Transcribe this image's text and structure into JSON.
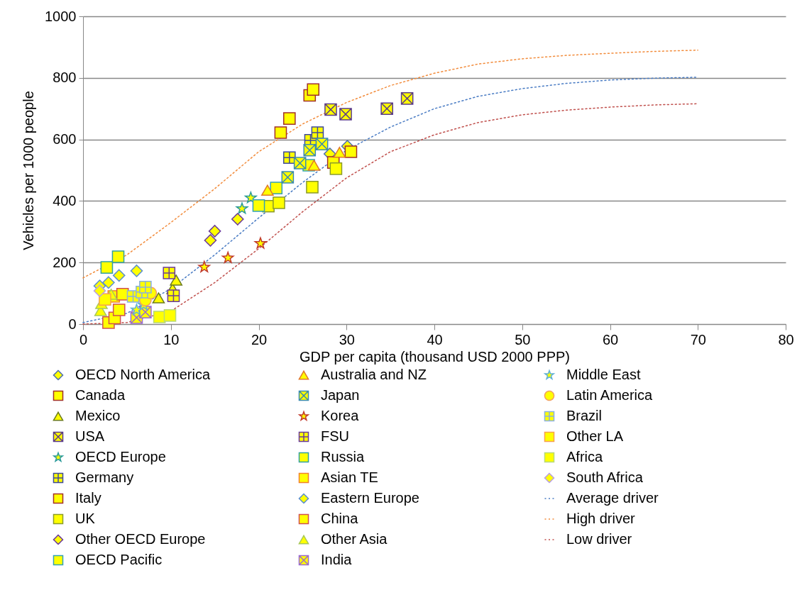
{
  "chart_data": {
    "type": "scatter",
    "xlabel": "GDP per capita (thousand USD 2000 PPP)",
    "ylabel": "Vehicles per 1000 people",
    "xlim": [
      0,
      80
    ],
    "xticks": [
      0,
      10,
      20,
      30,
      40,
      50,
      60,
      70,
      80
    ],
    "ylim": [
      0,
      1000
    ],
    "yticks": [
      0,
      200,
      400,
      600,
      800,
      {
        "value": 1000,
        "label": "1000"
      }
    ],
    "grid": "y",
    "legend": "bottom",
    "series": [
      {
        "name": "OECD North America",
        "marker": "diamond",
        "color": "#4f6fb0",
        "x": [
          28.1,
          30.1
        ],
        "values": [
          553,
          578
        ]
      },
      {
        "name": "Canada",
        "marker": "square",
        "color": "#a0302a",
        "x": [
          28.5,
          30.5
        ],
        "values": [
          525,
          560
        ]
      },
      {
        "name": "Mexico",
        "marker": "triangle",
        "color": "#6b7a1f",
        "x": [
          8.6,
          10.2,
          10.6
        ],
        "values": [
          85,
          115,
          143
        ]
      },
      {
        "name": "USA",
        "marker": "x",
        "color": "#5a3a8a",
        "x": [
          28.2,
          29.9,
          34.6,
          36.9
        ],
        "values": [
          697,
          682,
          700,
          733
        ]
      },
      {
        "name": "OECD Europe",
        "marker": "star",
        "color": "#2a9a9a",
        "x": [
          18.1,
          19.1
        ],
        "values": [
          375,
          410
        ]
      },
      {
        "name": "Germany",
        "marker": "cross",
        "color": "#3f4a9a",
        "x": [
          23.5,
          25.9,
          26.7
        ],
        "values": [
          541,
          597,
          622
        ]
      },
      {
        "name": "Italy",
        "marker": "square",
        "color": "#a0302a",
        "x": [
          22.5,
          23.5,
          25.8,
          26.2
        ],
        "values": [
          622,
          668,
          743,
          762
        ]
      },
      {
        "name": "UK",
        "marker": "square",
        "color": "#8a9a2a",
        "x": [
          21.1,
          22.3,
          26.1,
          28.8
        ],
        "values": [
          383,
          394,
          445,
          505
        ]
      },
      {
        "name": "Other OECD Europe",
        "marker": "diamond",
        "color": "#6a3a9a",
        "x": [
          14.5,
          15,
          17.6
        ],
        "values": [
          272,
          302,
          341
        ]
      },
      {
        "name": "OECD Pacific",
        "marker": "square",
        "color": "#31a0b8",
        "x": [
          20,
          22,
          25.7
        ],
        "values": [
          385,
          442,
          516
        ]
      },
      {
        "name": "Australia and NZ",
        "marker": "triangle",
        "color": "#e0782a",
        "x": [
          21,
          26.3,
          29.2
        ],
        "values": [
          435,
          516,
          558
        ]
      },
      {
        "name": "Japan",
        "marker": "x",
        "color": "#3a8ab0",
        "x": [
          23.3,
          24.7,
          25.8,
          27.2
        ],
        "values": [
          477,
          523,
          565,
          585
        ]
      },
      {
        "name": "Korea",
        "marker": "star",
        "color": "#c0392b",
        "x": [
          13.8,
          16.5,
          20.2
        ],
        "values": [
          185,
          215,
          262
        ]
      },
      {
        "name": "FSU",
        "marker": "cross",
        "color": "#6a3a9a",
        "x": [
          9.8,
          10.3
        ],
        "values": [
          166,
          92
        ]
      },
      {
        "name": "Russia",
        "marker": "square",
        "color": "#31a0a0",
        "x": [
          2.7,
          4
        ],
        "values": [
          184,
          219
        ]
      },
      {
        "name": "Asian TE",
        "marker": "square",
        "color": "#f08030",
        "x": [
          3.5
        ],
        "values": [
          90
        ]
      },
      {
        "name": "Eastern Europe",
        "marker": "diamond",
        "color": "#5b8fd0",
        "x": [
          1.9,
          2.9,
          4.1,
          6.1
        ],
        "values": [
          124,
          135,
          158,
          173
        ]
      },
      {
        "name": "China",
        "marker": "square",
        "color": "#d05050",
        "x": [
          2.9,
          3.6,
          4.1,
          4.5
        ],
        "values": [
          5,
          20,
          46,
          97
        ]
      },
      {
        "name": "Other Asia",
        "marker": "triangle",
        "color": "#a8c858",
        "x": [
          2,
          2.1,
          3.2
        ],
        "values": [
          44,
          67,
          97
        ]
      },
      {
        "name": "India",
        "marker": "x",
        "color": "#9a6ad0",
        "x": [
          6.1,
          7.1
        ],
        "values": [
          21,
          39
        ]
      },
      {
        "name": "Middle East",
        "marker": "star",
        "color": "#60b0d8",
        "x": [
          6.1,
          6.9
        ],
        "values": [
          46,
          62
        ]
      },
      {
        "name": "Latin America",
        "marker": "circle",
        "color": "#f0a060",
        "x": [
          7.1,
          7.7
        ],
        "values": [
          78,
          101
        ]
      },
      {
        "name": "Brazil",
        "marker": "cross",
        "color": "#8ab0e0",
        "x": [
          5.7,
          6.7,
          7.1
        ],
        "values": [
          90,
          104,
          120
        ]
      },
      {
        "name": "Other LA",
        "marker": "square",
        "color": "#f5a050",
        "x": [
          2.5
        ],
        "values": [
          80
        ]
      },
      {
        "name": "Africa",
        "marker": "square",
        "color": "#b8d878",
        "x": [
          8.7,
          9.9
        ],
        "values": [
          23,
          28
        ]
      },
      {
        "name": "South Africa",
        "marker": "diamond",
        "color": "#b8a0e0",
        "x": [
          1.9
        ],
        "values": [
          108
        ]
      },
      {
        "name": "Average driver",
        "type": "line",
        "line_style": "dotted",
        "marker": "none",
        "color": "#4a7cc4",
        "x": [
          0,
          5,
          10,
          15,
          20,
          25,
          30,
          35,
          40,
          45,
          50,
          55,
          60,
          65,
          70
        ],
        "values": [
          5,
          35,
          115,
          225,
          345,
          460,
          565,
          640,
          700,
          740,
          765,
          782,
          793,
          799,
          802
        ]
      },
      {
        "name": "High driver",
        "type": "line",
        "line_style": "dotted",
        "marker": "none",
        "color": "#f28c3c",
        "x": [
          0,
          5,
          10,
          15,
          20,
          25,
          30,
          35,
          40,
          45,
          50,
          55,
          60,
          65,
          70
        ],
        "values": [
          150,
          225,
          330,
          440,
          560,
          650,
          720,
          775,
          815,
          845,
          862,
          873,
          880,
          886,
          890
        ]
      },
      {
        "name": "Low driver",
        "type": "line",
        "line_style": "dotted",
        "marker": "none",
        "color": "#c0504d",
        "x": [
          0,
          5,
          10,
          15,
          20,
          25,
          30,
          35,
          40,
          45,
          50,
          55,
          60,
          65,
          70
        ],
        "values": [
          0,
          5,
          42,
          135,
          245,
          365,
          475,
          560,
          615,
          655,
          680,
          695,
          705,
          712,
          716
        ]
      }
    ]
  }
}
